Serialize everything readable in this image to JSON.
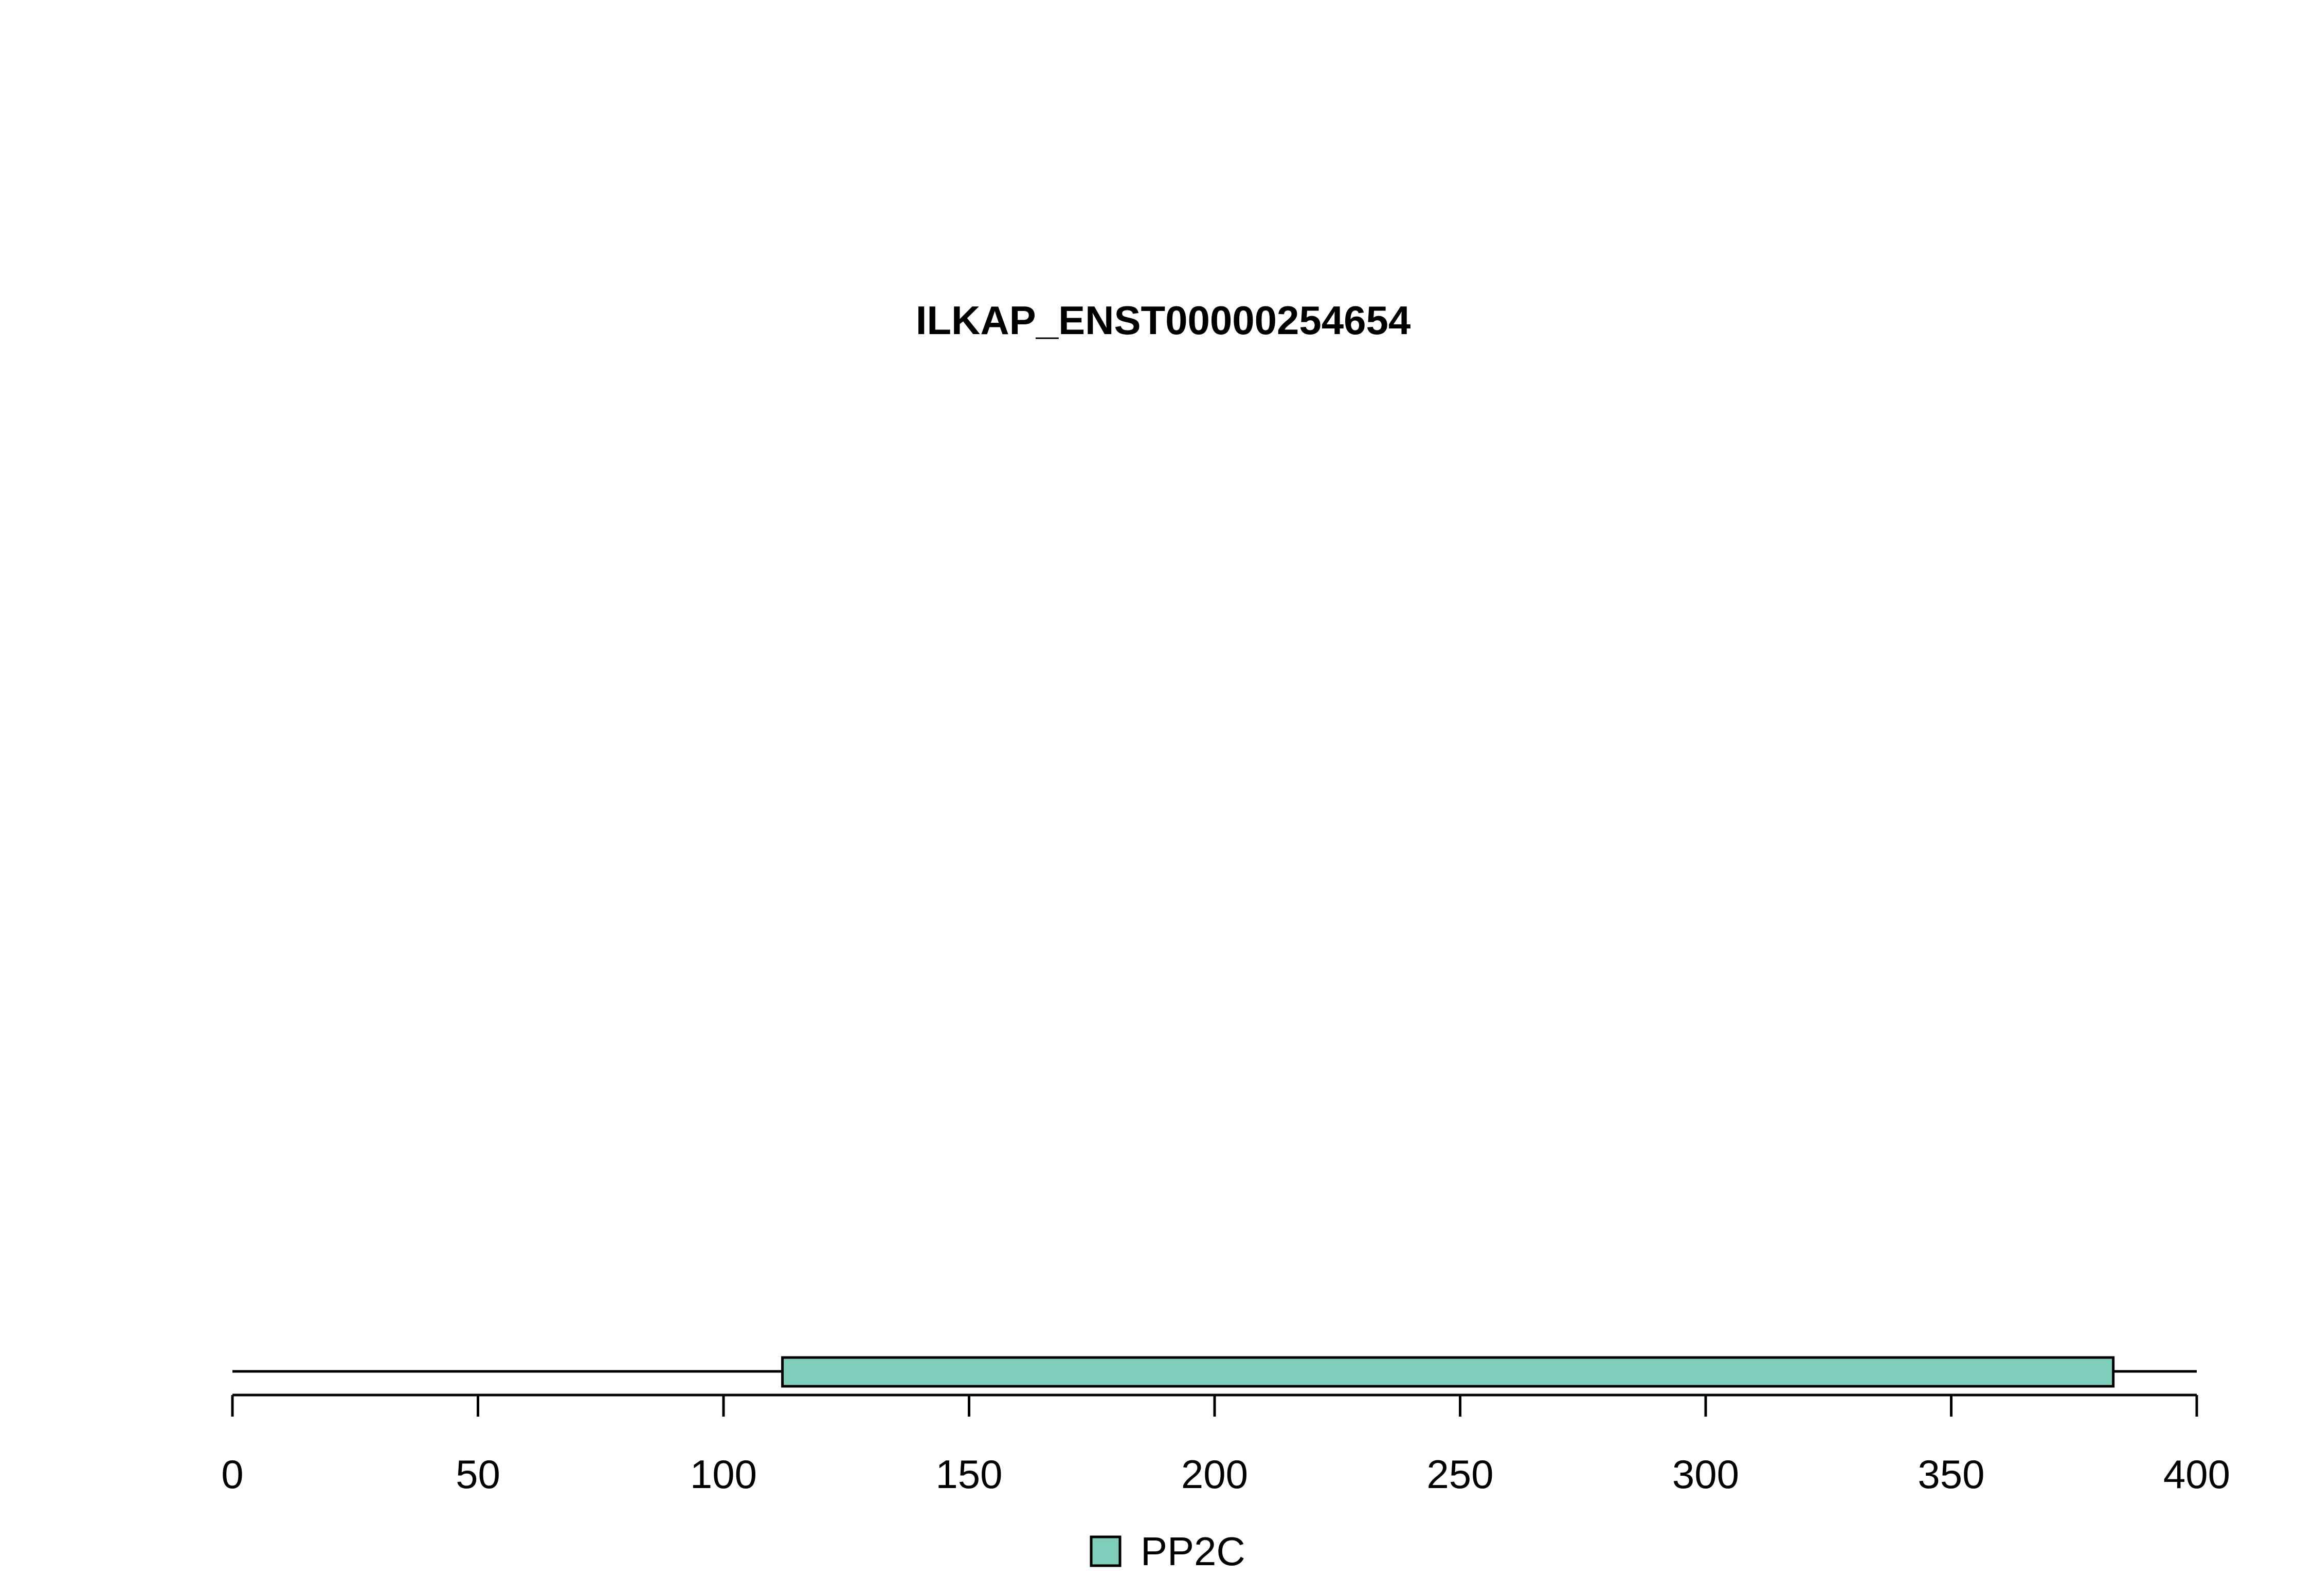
{
  "chart_data": {
    "type": "bar",
    "title": "ILKAP_ENST00000254654",
    "xlabel": "",
    "ylabel": "",
    "protein_length": 400,
    "xlim": [
      0,
      400
    ],
    "x_ticks": [
      0,
      50,
      100,
      150,
      200,
      250,
      300,
      350,
      400
    ],
    "x_tick_labels": [
      "0",
      "50",
      "100",
      "150",
      "200",
      "250",
      "300",
      "350",
      "400"
    ],
    "domains": [
      {
        "name": "PP2C",
        "start": 112,
        "end": 383,
        "color": "#7FCDBB"
      }
    ],
    "legend": {
      "placement": "bottom-center",
      "entries": [
        {
          "label": "PP2C",
          "color": "#7FCDBB"
        }
      ]
    },
    "grid": false
  },
  "colors": {
    "background": "#FFFFFF",
    "axis": "#000000",
    "domain_fill": "#7FCDBB"
  }
}
